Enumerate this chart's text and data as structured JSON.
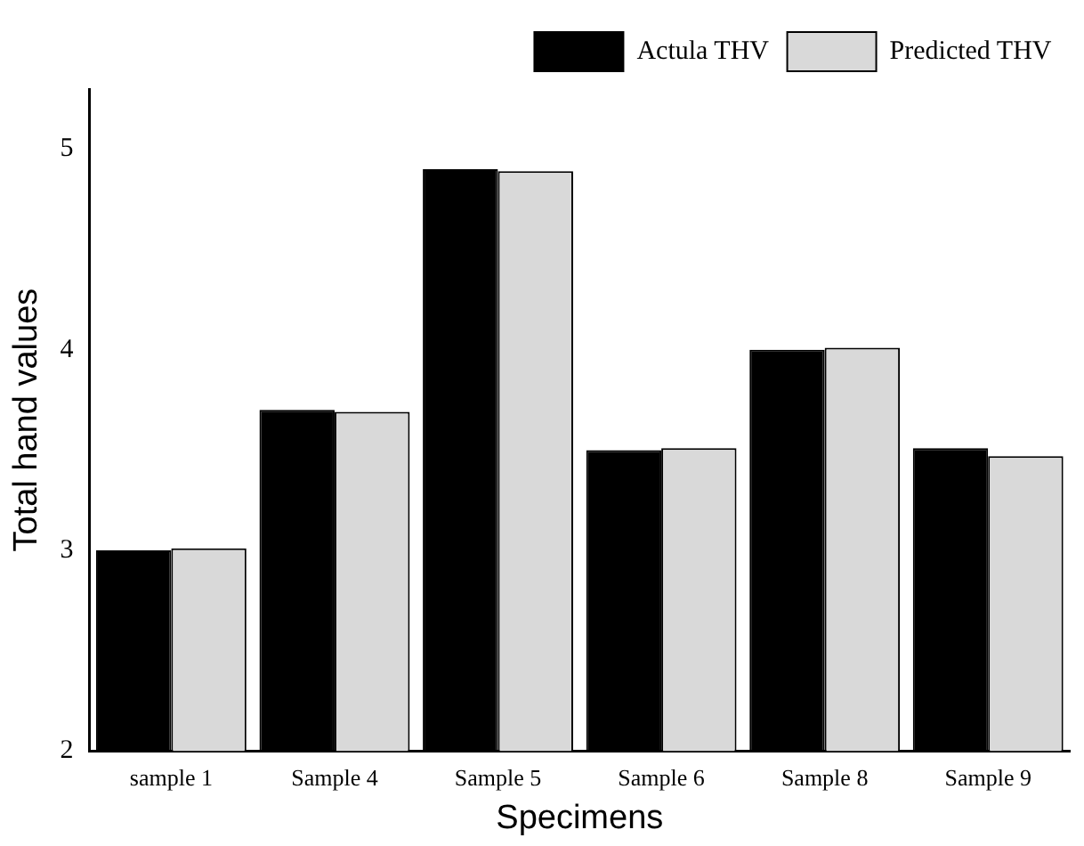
{
  "chart_data": {
    "type": "bar",
    "xlabel": "Specimens",
    "ylabel": "Total hand values",
    "categories": [
      "sample 1",
      "Sample 4",
      "Sample 5",
      "Sample 6",
      "Sample 8",
      "Sample 9"
    ],
    "series": [
      {
        "name": "Actula THV",
        "color": "#000000",
        "values": [
          3.0,
          3.7,
          4.9,
          3.5,
          4.0,
          3.51
        ]
      },
      {
        "name": "Predicted THV",
        "color": "#d9d9d9",
        "values": [
          3.01,
          3.69,
          4.89,
          3.51,
          4.01,
          3.47
        ]
      }
    ],
    "ylim": [
      2,
      5.3
    ],
    "yticks": [
      2,
      3,
      4,
      5
    ],
    "grid": false,
    "legend": "top right"
  }
}
